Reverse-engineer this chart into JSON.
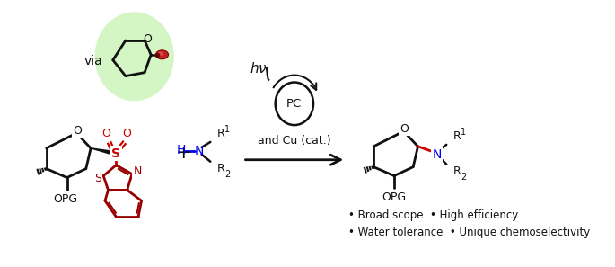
{
  "background_color": "#ffffff",
  "green_circle_color": "#d4f5c4",
  "red_color": "#cc0000",
  "blue_color": "#0000ee",
  "black_color": "#111111",
  "dark_red": "#990000",
  "bullet_text_line1": "• Broad scope  • High efficiency",
  "bullet_text_line2": "• Water tolerance  • Unique chemoselectivity",
  "via_text": "via",
  "pc_text": "PC",
  "and_cu_text": "and Cu (cat.)",
  "opg_text": "OPG",
  "plus_text": "+",
  "figsize": [
    6.85,
    2.97
  ],
  "dpi": 100
}
